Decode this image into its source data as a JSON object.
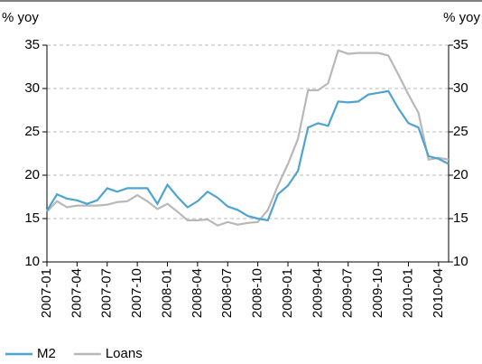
{
  "chart_data": {
    "type": "line",
    "ylabel": "% yoy",
    "y2label": "% yoy",
    "categories": [
      "2007-01",
      null,
      null,
      "2007-04",
      null,
      null,
      "2007-07",
      null,
      null,
      "2007-10",
      null,
      null,
      "2008-01",
      null,
      null,
      "2008-04",
      null,
      null,
      "2008-07",
      null,
      null,
      "2008-10",
      null,
      null,
      "2009-01",
      null,
      null,
      "2009-04",
      null,
      null,
      "2009-07",
      null,
      null,
      "2009-10",
      null,
      null,
      "2010-01",
      null,
      null,
      "2010-04",
      null
    ],
    "series": [
      {
        "name": "M2",
        "color": "#4fa3d1",
        "values": [
          15.9,
          17.8,
          17.3,
          17.1,
          16.7,
          17.1,
          18.5,
          18.1,
          18.5,
          18.5,
          18.5,
          16.7,
          18.9,
          17.5,
          16.3,
          17.0,
          18.1,
          17.4,
          16.4,
          16.0,
          15.3,
          15.0,
          14.8,
          17.8,
          18.8,
          20.5,
          25.5,
          26.0,
          25.7,
          28.5,
          28.4,
          28.5,
          29.3,
          29.5,
          29.7,
          27.7,
          26.0,
          25.5,
          22.2,
          21.9,
          21.3
        ]
      },
      {
        "name": "Loans",
        "color": "#b8b8b8",
        "values": [
          15.8,
          17.0,
          16.3,
          16.5,
          16.5,
          16.5,
          16.6,
          16.9,
          17.0,
          17.7,
          17.0,
          16.1,
          16.7,
          15.8,
          14.8,
          14.8,
          14.9,
          14.2,
          14.6,
          14.3,
          14.5,
          14.6,
          16.0,
          18.8,
          21.3,
          24.2,
          29.8,
          29.8,
          30.6,
          34.4,
          34.0,
          34.1,
          34.1,
          34.1,
          33.8,
          31.6,
          29.3,
          27.2,
          21.8,
          22.0,
          21.8
        ]
      }
    ],
    "ylim": [
      10,
      35
    ],
    "yticks": [
      10,
      15,
      20,
      25,
      30,
      35
    ],
    "y2lim": [
      10,
      35
    ],
    "y2ticks": [
      10,
      15,
      20,
      25,
      30,
      35
    ],
    "grid": true,
    "legend": "bottom"
  }
}
